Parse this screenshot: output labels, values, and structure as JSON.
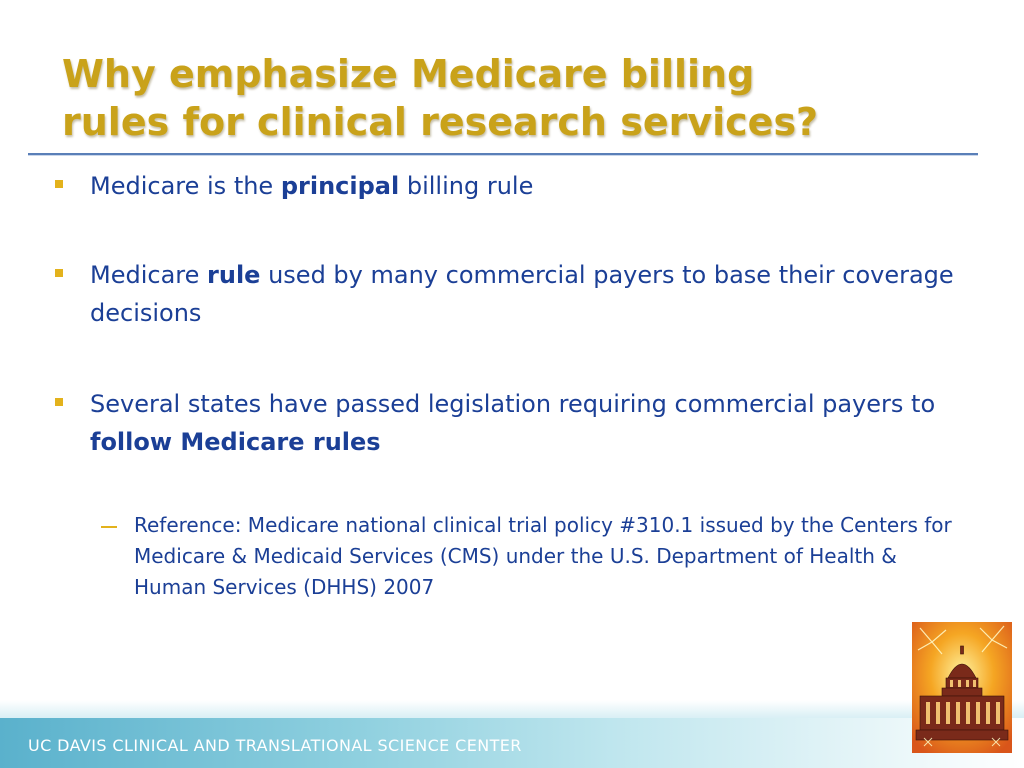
{
  "title": {
    "line1": "Why emphasize Medicare billing",
    "line2": "rules for clinical research services?"
  },
  "bullets": [
    {
      "before": "Medicare is the ",
      "bold": "principal",
      "after": " billing rule"
    },
    {
      "before": "Medicare ",
      "bold": "rule",
      "after": " used by many commercial payers to base their coverage decisions"
    },
    {
      "before": "Several states have passed legislation requiring commercial payers to ",
      "bold": "follow Medicare rules",
      "after": ""
    }
  ],
  "sub_bullet": "Reference: Medicare national clinical trial policy #310.1 issued by the Centers for Medicare & Medicaid Services (CMS) under the U.S. Department of Health & Human Services (DHHS) 2007",
  "footer": {
    "text": "UC DAVIS CLINICAL AND TRANSLATIONAL SCIENCE CENTER"
  },
  "colors": {
    "title": "#c9a21a",
    "body_text": "#1b3f96",
    "bullet_marker": "#e3b21c",
    "rule": "#5a7fb8",
    "footer_band": "#5ab1cc"
  },
  "icons": {
    "corner_image": "capitol-fireworks-icon"
  }
}
